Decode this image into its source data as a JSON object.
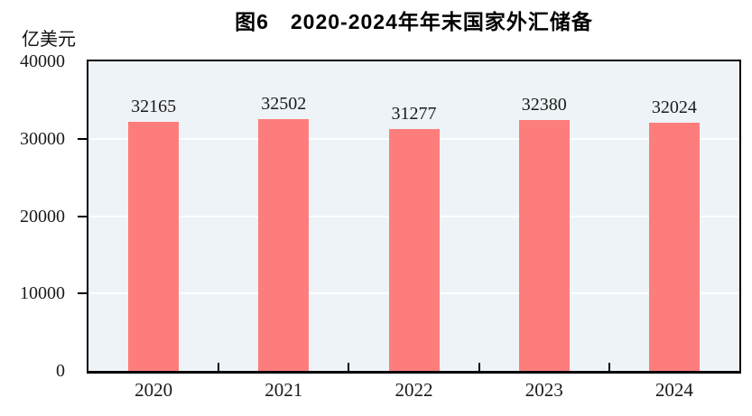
{
  "chart": {
    "figure_number": "图6",
    "caption": "图6　2020-2024年年末国家外汇储备"
  },
  "chart_data": {
    "type": "bar",
    "title": "图6　2020-2024年年末国家外汇储备",
    "xlabel": "",
    "ylabel": "亿美元",
    "categories": [
      "2020",
      "2021",
      "2022",
      "2023",
      "2024"
    ],
    "values": [
      32165,
      32502,
      31277,
      32380,
      32024
    ],
    "data_labels": [
      "32165",
      "32502",
      "31277",
      "32380",
      "32024"
    ],
    "ylim": [
      0,
      40000
    ],
    "yticks": [
      0,
      10000,
      20000,
      30000,
      40000
    ],
    "grid": "horizontal white major gridlines",
    "legend": "none",
    "bar_color": "#fd7d7d",
    "plot_background_color": "#eef3f7",
    "axis_color": "#000000",
    "label_color": "#1a1a1a"
  }
}
